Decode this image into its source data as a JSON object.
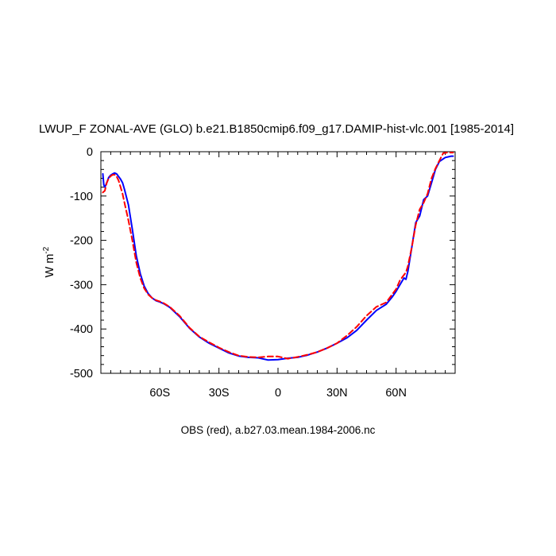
{
  "chart_data": {
    "type": "line",
    "title": "LWUP_F ZONAL-AVE (GLO) b.e21.B1850cmip6.f09_g17.DAMIP-hist-vlc.001 [1985-2014]",
    "ylabel": "W m",
    "ylabel_sup": "-2",
    "caption": "OBS (red), a.b27.03.mean.1984-2006.nc",
    "xlim": [
      -90,
      90
    ],
    "ylim": [
      -500,
      0
    ],
    "xticks": [
      -60,
      -30,
      0,
      30,
      60
    ],
    "xtick_labels": [
      "60S",
      "30S",
      "0",
      "30N",
      "60N"
    ],
    "yticks": [
      0,
      -100,
      -200,
      -300,
      -400,
      -500
    ],
    "ytick_labels": [
      "0",
      "-100",
      "-200",
      "-300",
      "-400",
      "-500"
    ],
    "grid": false,
    "legend": "none",
    "series": [
      {
        "color": "#0000ff",
        "dash": "solid",
        "x": [
          -89,
          -88.5,
          -88,
          -87,
          -86,
          -85,
          -84,
          -83,
          -82,
          -81,
          -80,
          -79,
          -78,
          -76,
          -74,
          -72,
          -70,
          -68,
          -66,
          -64,
          -62,
          -60,
          -58,
          -55,
          -50,
          -45,
          -40,
          -35,
          -30,
          -25,
          -20,
          -15,
          -10,
          -5,
          0,
          5,
          10,
          15,
          20,
          25,
          30,
          35,
          40,
          45,
          50,
          55,
          58,
          60,
          62,
          64,
          65,
          66,
          68,
          70,
          72,
          74,
          76,
          78,
          80,
          82,
          85,
          88,
          89
        ],
        "y": [
          -50,
          -75,
          -80,
          -70,
          -58,
          -53,
          -50,
          -48,
          -50,
          -56,
          -62,
          -70,
          -85,
          -120,
          -175,
          -235,
          -275,
          -303,
          -320,
          -330,
          -336,
          -339,
          -343,
          -351,
          -372,
          -398,
          -418,
          -432,
          -443,
          -454,
          -461,
          -464,
          -465,
          -470,
          -469,
          -466,
          -464,
          -459,
          -452,
          -443,
          -432,
          -420,
          -403,
          -380,
          -358,
          -344,
          -328,
          -315,
          -300,
          -285,
          -288,
          -270,
          -215,
          -160,
          -145,
          -108,
          -100,
          -70,
          -40,
          -22,
          -13,
          -10,
          -10
        ]
      },
      {
        "color": "#ff0000",
        "dash": "dashed",
        "x": [
          -89,
          -88,
          -87,
          -86,
          -85,
          -84,
          -83,
          -82,
          -81,
          -80,
          -79,
          -78,
          -76,
          -74,
          -72,
          -70,
          -68,
          -66,
          -64,
          -62,
          -60,
          -58,
          -55,
          -50,
          -45,
          -40,
          -35,
          -30,
          -25,
          -20,
          -15,
          -10,
          -5,
          0,
          5,
          10,
          15,
          20,
          25,
          30,
          35,
          40,
          45,
          50,
          55,
          58,
          60,
          62,
          64,
          65,
          66,
          68,
          70,
          72,
          74,
          76,
          78,
          80,
          82,
          84,
          86,
          89
        ],
        "y": [
          -92,
          -88,
          -70,
          -60,
          -55,
          -52,
          -52,
          -56,
          -65,
          -80,
          -95,
          -115,
          -155,
          -200,
          -250,
          -285,
          -308,
          -322,
          -330,
          -335,
          -338,
          -342,
          -350,
          -370,
          -397,
          -417,
          -430,
          -442,
          -452,
          -460,
          -463,
          -464,
          -462,
          -462,
          -467,
          -463,
          -458,
          -452,
          -443,
          -432,
          -415,
          -395,
          -370,
          -350,
          -340,
          -322,
          -310,
          -290,
          -278,
          -272,
          -258,
          -215,
          -165,
          -130,
          -115,
          -95,
          -60,
          -38,
          -20,
          -3,
          -2,
          -2
        ]
      }
    ]
  }
}
